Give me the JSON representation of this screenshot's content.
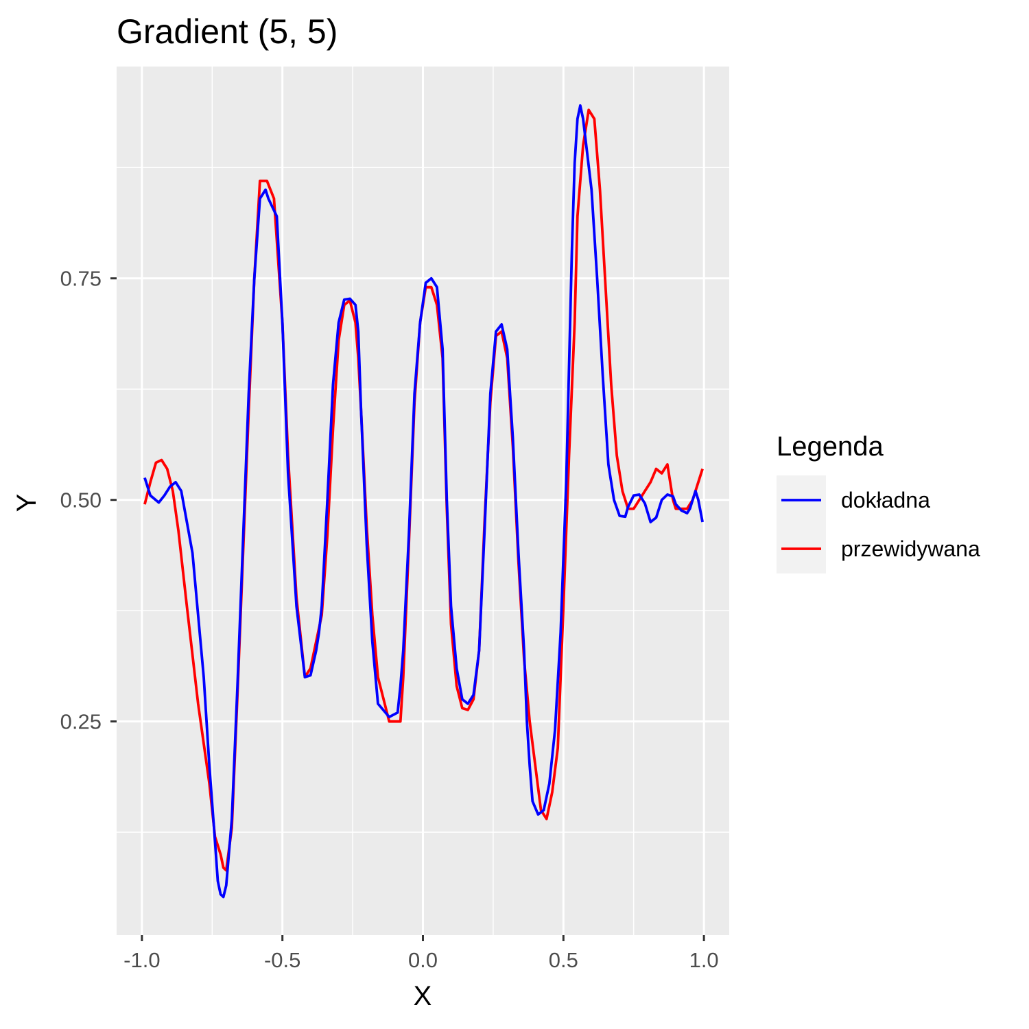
{
  "chart_data": {
    "type": "line",
    "title": "Gradient (5, 5)",
    "xlabel": "X",
    "ylabel": "Y",
    "xlim": [
      -1.09,
      1.09
    ],
    "ylim": [
      0.009,
      0.989
    ],
    "x_ticks": [
      -1.0,
      -0.5,
      0.0,
      0.5,
      1.0
    ],
    "x_tick_labels": [
      "-1.0",
      "-0.5",
      "0.0",
      "0.5",
      "1.0"
    ],
    "y_ticks": [
      0.25,
      0.5,
      0.75
    ],
    "y_tick_labels": [
      "0.25",
      "0.50",
      "0.75"
    ],
    "x_minor_ticks": [
      -0.75,
      -0.25,
      0.25,
      0.75
    ],
    "y_minor_ticks": [
      0.125,
      0.375,
      0.625,
      0.875
    ],
    "grid": true,
    "panel_background": "#EBEBEB",
    "grid_color": "#FFFFFF",
    "legend": {
      "title": "Legenda",
      "position": "right",
      "entries": [
        "dokładna",
        "przewidywana"
      ]
    },
    "series": [
      {
        "name": "dokładna",
        "color": "#0000FF",
        "x": [
          -0.99,
          -0.97,
          -0.94,
          -0.92,
          -0.9,
          -0.88,
          -0.86,
          -0.82,
          -0.78,
          -0.76,
          -0.74,
          -0.73,
          -0.72,
          -0.71,
          -0.7,
          -0.68,
          -0.66,
          -0.62,
          -0.6,
          -0.58,
          -0.56,
          -0.555,
          -0.55,
          -0.52,
          -0.5,
          -0.48,
          -0.45,
          -0.42,
          -0.4,
          -0.38,
          -0.37,
          -0.36,
          -0.34,
          -0.32,
          -0.3,
          -0.28,
          -0.26,
          -0.24,
          -0.23,
          -0.22,
          -0.2,
          -0.18,
          -0.16,
          -0.12,
          -0.09,
          -0.08,
          -0.07,
          -0.05,
          -0.03,
          -0.01,
          0.01,
          0.03,
          0.05,
          0.07,
          0.085,
          0.1,
          0.12,
          0.14,
          0.16,
          0.18,
          0.2,
          0.22,
          0.24,
          0.26,
          0.28,
          0.3,
          0.32,
          0.34,
          0.36,
          0.37,
          0.38,
          0.39,
          0.41,
          0.43,
          0.45,
          0.47,
          0.49,
          0.51,
          0.52,
          0.53,
          0.54,
          0.55,
          0.56,
          0.57,
          0.6,
          0.62,
          0.64,
          0.66,
          0.68,
          0.7,
          0.72,
          0.73,
          0.75,
          0.77,
          0.79,
          0.81,
          0.83,
          0.85,
          0.87,
          0.89,
          0.9,
          0.92,
          0.94,
          0.95,
          0.96,
          0.97,
          0.98,
          0.995
        ],
        "y": [
          0.525,
          0.505,
          0.497,
          0.505,
          0.515,
          0.52,
          0.51,
          0.44,
          0.3,
          0.2,
          0.115,
          0.07,
          0.055,
          0.052,
          0.065,
          0.14,
          0.29,
          0.62,
          0.75,
          0.84,
          0.85,
          0.845,
          0.84,
          0.82,
          0.7,
          0.53,
          0.38,
          0.3,
          0.302,
          0.33,
          0.35,
          0.38,
          0.5,
          0.63,
          0.7,
          0.726,
          0.727,
          0.72,
          0.69,
          0.6,
          0.45,
          0.34,
          0.27,
          0.255,
          0.26,
          0.29,
          0.33,
          0.46,
          0.62,
          0.7,
          0.745,
          0.75,
          0.74,
          0.67,
          0.5,
          0.38,
          0.31,
          0.275,
          0.27,
          0.28,
          0.33,
          0.47,
          0.62,
          0.69,
          0.698,
          0.67,
          0.57,
          0.44,
          0.33,
          0.25,
          0.2,
          0.16,
          0.145,
          0.15,
          0.18,
          0.24,
          0.35,
          0.52,
          0.65,
          0.78,
          0.88,
          0.93,
          0.945,
          0.93,
          0.85,
          0.75,
          0.64,
          0.54,
          0.5,
          0.482,
          0.481,
          0.492,
          0.505,
          0.506,
          0.496,
          0.475,
          0.48,
          0.5,
          0.506,
          0.504,
          0.495,
          0.488,
          0.485,
          0.49,
          0.5,
          0.51,
          0.5,
          0.475
        ]
      },
      {
        "name": "przewidywana",
        "color": "#FF0000",
        "x": [
          -0.99,
          -0.97,
          -0.95,
          -0.93,
          -0.91,
          -0.89,
          -0.87,
          -0.84,
          -0.8,
          -0.76,
          -0.74,
          -0.72,
          -0.71,
          -0.7,
          -0.68,
          -0.66,
          -0.62,
          -0.6,
          -0.58,
          -0.555,
          -0.53,
          -0.5,
          -0.48,
          -0.45,
          -0.42,
          -0.4,
          -0.38,
          -0.36,
          -0.34,
          -0.32,
          -0.3,
          -0.28,
          -0.26,
          -0.24,
          -0.23,
          -0.22,
          -0.2,
          -0.18,
          -0.16,
          -0.12,
          -0.09,
          -0.08,
          -0.07,
          -0.05,
          -0.03,
          -0.01,
          0.01,
          0.03,
          0.05,
          0.07,
          0.085,
          0.1,
          0.12,
          0.14,
          0.16,
          0.18,
          0.2,
          0.22,
          0.24,
          0.26,
          0.28,
          0.3,
          0.32,
          0.34,
          0.36,
          0.38,
          0.4,
          0.42,
          0.44,
          0.46,
          0.48,
          0.5,
          0.52,
          0.54,
          0.55,
          0.57,
          0.59,
          0.61,
          0.63,
          0.65,
          0.67,
          0.69,
          0.71,
          0.73,
          0.75,
          0.77,
          0.79,
          0.81,
          0.83,
          0.85,
          0.87,
          0.89,
          0.9,
          0.92,
          0.94,
          0.96,
          0.98,
          0.995
        ],
        "y": [
          0.495,
          0.52,
          0.542,
          0.545,
          0.535,
          0.51,
          0.465,
          0.38,
          0.27,
          0.18,
          0.12,
          0.1,
          0.085,
          0.082,
          0.13,
          0.28,
          0.6,
          0.75,
          0.86,
          0.86,
          0.84,
          0.7,
          0.55,
          0.39,
          0.3,
          0.31,
          0.34,
          0.37,
          0.46,
          0.58,
          0.68,
          0.72,
          0.725,
          0.7,
          0.66,
          0.6,
          0.47,
          0.37,
          0.3,
          0.25,
          0.25,
          0.25,
          0.3,
          0.45,
          0.61,
          0.7,
          0.74,
          0.74,
          0.72,
          0.66,
          0.49,
          0.36,
          0.29,
          0.265,
          0.263,
          0.275,
          0.33,
          0.48,
          0.61,
          0.685,
          0.69,
          0.66,
          0.56,
          0.43,
          0.32,
          0.25,
          0.2,
          0.15,
          0.14,
          0.17,
          0.22,
          0.38,
          0.55,
          0.7,
          0.82,
          0.9,
          0.94,
          0.93,
          0.85,
          0.74,
          0.63,
          0.55,
          0.51,
          0.49,
          0.49,
          0.5,
          0.51,
          0.52,
          0.535,
          0.53,
          0.54,
          0.5,
          0.49,
          0.49,
          0.49,
          0.5,
          0.52,
          0.535
        ]
      }
    ]
  }
}
